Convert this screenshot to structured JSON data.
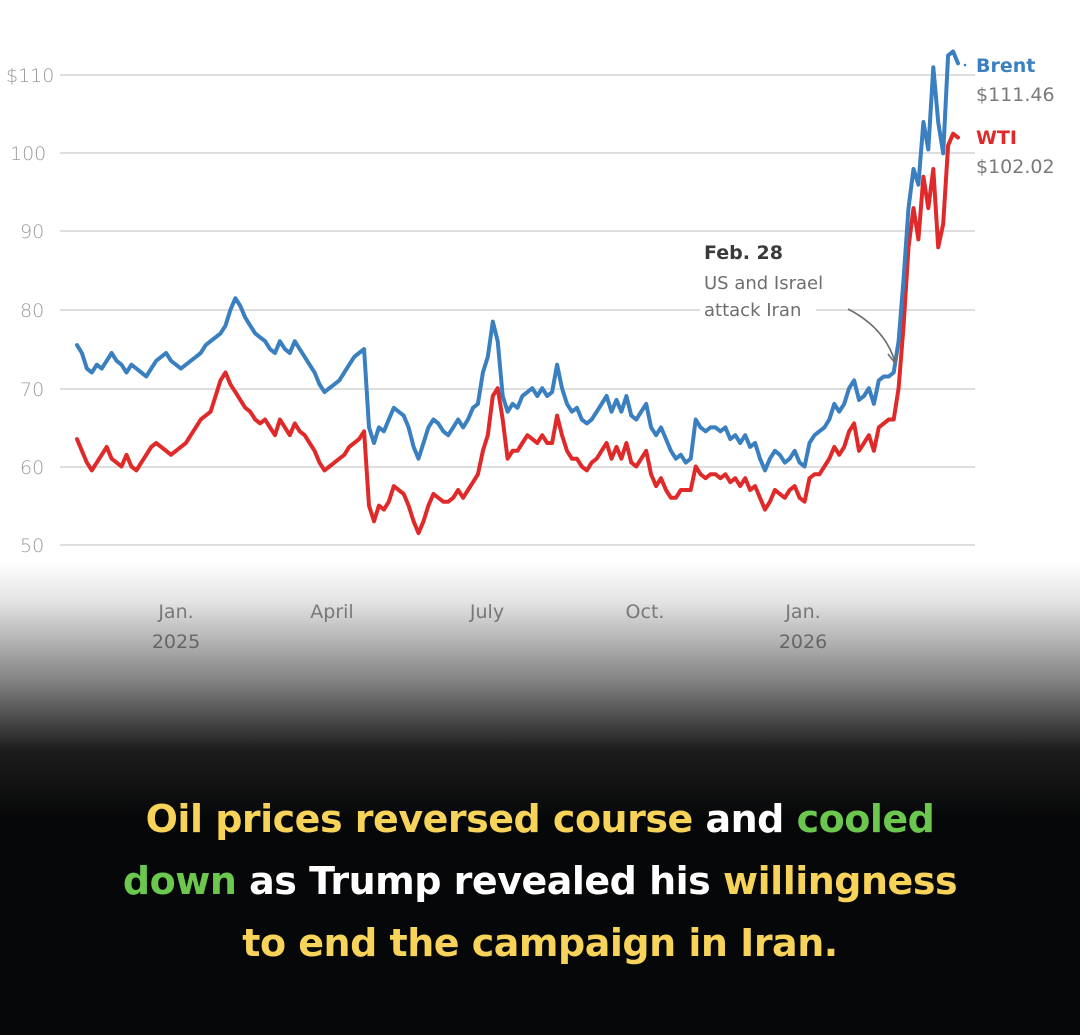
{
  "chart_data": {
    "type": "line",
    "title": "",
    "xlabel": "",
    "ylabel": "",
    "ylim": [
      50,
      110
    ],
    "yticks": [
      "$110",
      "100",
      "90",
      "80",
      "70",
      "60",
      "50"
    ],
    "ytick_values": [
      110,
      100,
      90,
      80,
      70,
      60,
      50
    ],
    "xticks": [
      {
        "label": "Jan.",
        "sublabel": "2025",
        "x_index": 0.113
      },
      {
        "label": "April",
        "sublabel": "",
        "x_index": 0.29
      },
      {
        "label": "July",
        "sublabel": "",
        "x_index": 0.465
      },
      {
        "label": "Oct.",
        "sublabel": "",
        "x_index": 0.643
      },
      {
        "label": "Jan.",
        "sublabel": "2026",
        "x_index": 0.82
      }
    ],
    "grid": true,
    "legend_position": "inline-right",
    "x_domain_note": "Dec. 2024 to mid-March 2026",
    "series": [
      {
        "name": "Brent",
        "end_label": "$111.46",
        "color": "#3a7fbf",
        "values": [
          75.5,
          74.5,
          72.5,
          72,
          73,
          72.5,
          73.5,
          74.5,
          73.5,
          73,
          72,
          73,
          72.5,
          72,
          71.5,
          72.5,
          73.5,
          74,
          74.5,
          73.5,
          73,
          72.5,
          73,
          73.5,
          74,
          74.5,
          75.5,
          76,
          76.5,
          77,
          78,
          80,
          81.5,
          80.5,
          79,
          78,
          77,
          76.5,
          76,
          75,
          74.5,
          76,
          75,
          74.5,
          76,
          75,
          74,
          73,
          72,
          70.5,
          69.5,
          70,
          70.5,
          71,
          72,
          73,
          74,
          74.5,
          75,
          65,
          63,
          65,
          64.5,
          66,
          67.5,
          67,
          66.5,
          65,
          62.5,
          61,
          63,
          65,
          66,
          65.5,
          64.5,
          64,
          65,
          66,
          65,
          66,
          67.5,
          68,
          72,
          74,
          78.5,
          76,
          69,
          67,
          68,
          67.5,
          69,
          69.5,
          70,
          69,
          70,
          69,
          69.5,
          73,
          70,
          68,
          67,
          67.5,
          66,
          65.5,
          66,
          67,
          68,
          69,
          67,
          68.5,
          67,
          69,
          66.5,
          66,
          67,
          68,
          65,
          64,
          65,
          63.5,
          62,
          61,
          61.5,
          60.5,
          61,
          66,
          65,
          64.5,
          65,
          65,
          64.5,
          65,
          63.5,
          64,
          63,
          64,
          62.5,
          63,
          61,
          59.5,
          61,
          62,
          61.5,
          60.5,
          61,
          62,
          60.5,
          60,
          63,
          64,
          64.5,
          65,
          66,
          68,
          67,
          68,
          70,
          71,
          68.5,
          69,
          70,
          68,
          71,
          71.5,
          71.5,
          72,
          76,
          84,
          93,
          98,
          96,
          104,
          100.5,
          111,
          104,
          100,
          112.5,
          113,
          111.5
        ],
        "final": 111.46
      },
      {
        "name": "WTI",
        "end_label": "$102.02",
        "color": "#e02a2a",
        "values": [
          63.5,
          62,
          60.5,
          59.5,
          60.5,
          61.5,
          62.5,
          61,
          60.5,
          60,
          61.5,
          60,
          59.5,
          60.5,
          61.5,
          62.5,
          63,
          62.5,
          62,
          61.5,
          62,
          62.5,
          63,
          64,
          65,
          66,
          66.5,
          67,
          69,
          71,
          72,
          70.5,
          69.5,
          68.5,
          67.5,
          67,
          66,
          65.5,
          66,
          65,
          64,
          66,
          65,
          64,
          65.5,
          64.5,
          64,
          63,
          62,
          60.5,
          59.5,
          60,
          60.5,
          61,
          61.5,
          62.5,
          63,
          63.5,
          64.5,
          55,
          53,
          55,
          54.5,
          55.5,
          57.5,
          57,
          56.5,
          55,
          53,
          51.5,
          53,
          55,
          56.5,
          56,
          55.5,
          55.5,
          56,
          57,
          56,
          57,
          58,
          59,
          62,
          64,
          69,
          70,
          66,
          61,
          62,
          62,
          63,
          64,
          63.5,
          63,
          64,
          63,
          63,
          66.5,
          64,
          62,
          61,
          61,
          60,
          59.5,
          60.5,
          61,
          62,
          63,
          61,
          62.5,
          61,
          63,
          60.5,
          60,
          61,
          62,
          59,
          57.5,
          58.5,
          57,
          56,
          56,
          57,
          57,
          57,
          60,
          59,
          58.5,
          59,
          59,
          58.5,
          59,
          58,
          58.5,
          57.5,
          58.5,
          57,
          57.5,
          56,
          54.5,
          55.5,
          57,
          56.5,
          56,
          57,
          57.5,
          56,
          55.5,
          58.5,
          59,
          59,
          60,
          61,
          62.5,
          61.5,
          62.5,
          64.5,
          65.5,
          62,
          63,
          64,
          62,
          65,
          65.5,
          66,
          66,
          70,
          78,
          88,
          93,
          89,
          97,
          93,
          98,
          88,
          91,
          101,
          102.5,
          102.02
        ],
        "final": 102.02
      }
    ],
    "annotations": [
      {
        "title": "Feb. 28",
        "text_line1": "US and Israel",
        "text_line2": "attack Iran",
        "points_to": "Feb. 28, 2026"
      }
    ]
  },
  "chart": {
    "y_labels": [
      "$110",
      "100",
      "90",
      "80",
      "70",
      "60",
      "50"
    ],
    "x_labels": {
      "jan2025_month": "Jan.",
      "jan2025_year": "2025",
      "april": "April",
      "july": "July",
      "oct": "Oct.",
      "jan2026_month": "Jan.",
      "jan2026_year": "2026"
    },
    "legend": {
      "brent_name": "Brent",
      "brent_value": "$111.46",
      "wti_name": "WTI",
      "wti_value": "$102.02"
    },
    "annotation": {
      "title": "Feb. 28",
      "line1": "US and Israel",
      "line2": "attack Iran"
    }
  },
  "caption": {
    "parts": [
      {
        "text": "Oil prices reversed course",
        "color": "yellow"
      },
      {
        "text": " and ",
        "color": "white"
      },
      {
        "text": "cooled down",
        "color": "green"
      },
      {
        "text": " as Trump revealed his ",
        "color": "white"
      },
      {
        "text": "willingness to end the campaign in Iran.",
        "color": "yellow"
      }
    ],
    "line1_a": "Oil prices reversed course",
    "line1_b": "and",
    "line1_c": "cooled",
    "line2_a": "down",
    "line2_b": "as Trump revealed his",
    "line2_c": "willingness",
    "line3": "to end the campaign in Iran."
  },
  "colors": {
    "brent": "#3a7fbf",
    "wti": "#e02a2a",
    "caption_yellow": "#f8d35a",
    "caption_green": "#6cc74f",
    "caption_white": "#ffffff",
    "background_bottom": "#060708"
  }
}
